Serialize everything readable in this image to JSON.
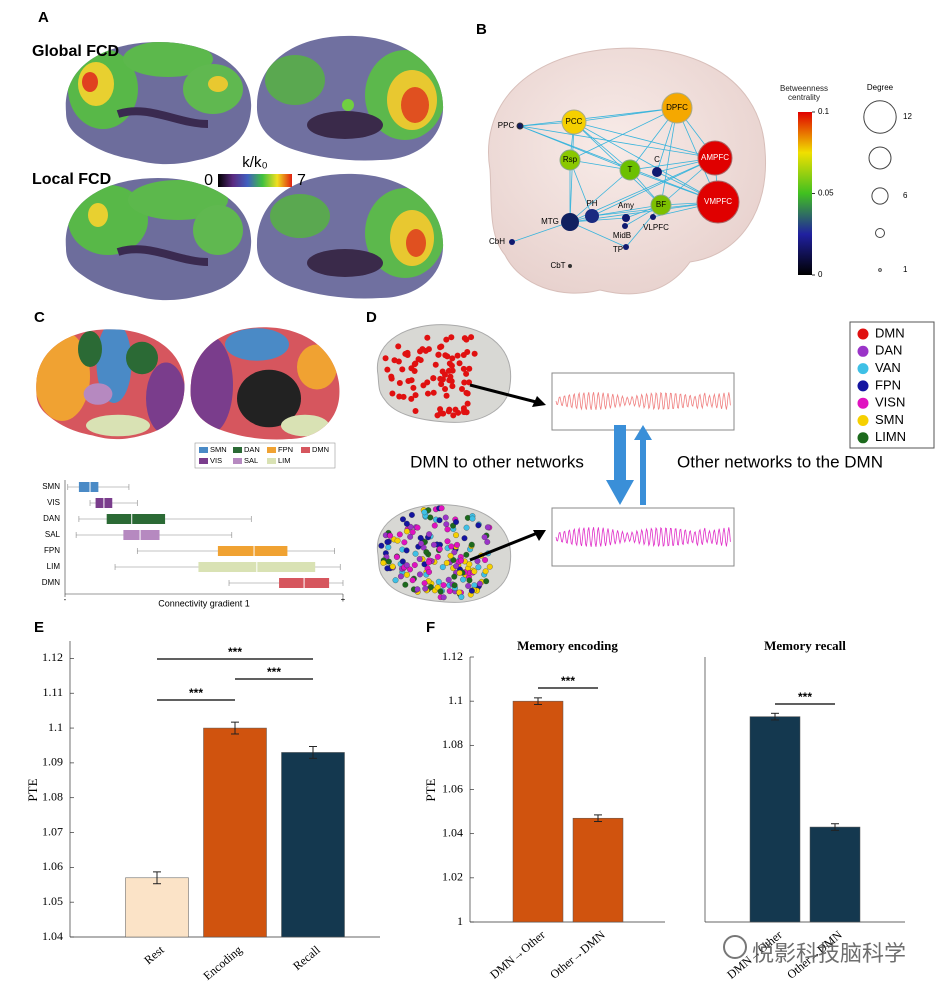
{
  "panel_letters": [
    "A",
    "B",
    "C",
    "D",
    "E",
    "F"
  ],
  "panel_a": {
    "global_label": "Global FCD",
    "local_label": "Local FCD",
    "colorbar": {
      "label": "k/k₀",
      "ticks": [
        0,
        7
      ]
    }
  },
  "panel_b": {
    "nodes": [
      "PPC",
      "PCC",
      "DPFC",
      "Rsp",
      "T",
      "C",
      "AMPFC",
      "PH",
      "Amy",
      "BF",
      "VMPFC",
      "MTG",
      "MidB",
      "VLPFC",
      "CbH",
      "TP",
      "CbT"
    ],
    "colorbar": {
      "title": "Betweenness centrality",
      "ticks": [
        0,
        0.05,
        0.1
      ]
    },
    "degree": {
      "title": "Degree",
      "ticks": [
        12,
        6,
        1
      ]
    }
  },
  "panel_c_legend": [
    {
      "name": "SMN",
      "color": "#4a8ac6"
    },
    {
      "name": "DAN",
      "color": "#2b6a35"
    },
    {
      "name": "FPN",
      "color": "#f0a232"
    },
    {
      "name": "DMN",
      "color": "#d6565e"
    },
    {
      "name": "VIS",
      "color": "#7a3d8c"
    },
    {
      "name": "SAL",
      "color": "#b689c0"
    },
    {
      "name": "LIM",
      "color": "#d9e2b4"
    }
  ],
  "panel_d": {
    "legend": [
      {
        "name": "DMN",
        "color": "#e01010"
      },
      {
        "name": "DAN",
        "color": "#9a34c8"
      },
      {
        "name": "VAN",
        "color": "#3ec0e6"
      },
      {
        "name": "FPN",
        "color": "#1414a0"
      },
      {
        "name": "VISN",
        "color": "#e012c0"
      },
      {
        "name": "SMN",
        "color": "#f6d000"
      },
      {
        "name": "LIMN",
        "color": "#1c6a1c"
      }
    ],
    "left_arrow_label": "DMN to other networks",
    "right_arrow_label": "Other networks to the DMN"
  },
  "chart_data": [
    {
      "type": "box",
      "categories": [
        "SMN",
        "VIS",
        "DAN",
        "SAL",
        "FPN",
        "LIM",
        "DMN"
      ],
      "boxes": [
        {
          "min": 0.01,
          "q1": 0.05,
          "median": 0.09,
          "q3": 0.12,
          "max": 0.23
        },
        {
          "min": 0.09,
          "q1": 0.11,
          "median": 0.14,
          "q3": 0.17,
          "max": 0.26
        },
        {
          "min": 0.05,
          "q1": 0.15,
          "median": 0.24,
          "q3": 0.36,
          "max": 0.67
        },
        {
          "min": 0.04,
          "q1": 0.21,
          "median": 0.27,
          "q3": 0.34,
          "max": 0.6
        },
        {
          "min": 0.26,
          "q1": 0.55,
          "median": 0.68,
          "q3": 0.8,
          "max": 0.97
        },
        {
          "min": 0.18,
          "q1": 0.48,
          "median": 0.69,
          "q3": 0.9,
          "max": 0.99
        },
        {
          "min": 0.59,
          "q1": 0.77,
          "median": 0.86,
          "q3": 0.95,
          "max": 1
        }
      ],
      "colors": [
        "#4a8ac6",
        "#7a3d8c",
        "#2b6a35",
        "#b689c0",
        "#f0a232",
        "#d9e2b4",
        "#d6565e"
      ],
      "xlabel": "Connectivity gradient 1",
      "xlim": [
        0,
        1
      ],
      "xticks": [
        {
          "value": 0,
          "label": "-"
        },
        {
          "value": 1,
          "label": "+"
        }
      ]
    },
    {
      "type": "bar",
      "ylabel": "PTE",
      "categories": [
        "Rest",
        "Encoding",
        "Recall"
      ],
      "values": [
        1.057,
        1.1,
        1.093
      ],
      "errors": [
        0.0017,
        0.0017,
        0.0017
      ],
      "colors": [
        "#fbe3c7",
        "#d0530e",
        "#14384f"
      ],
      "ylim": [
        1.04,
        1.125
      ],
      "yticks": [
        1.04,
        1.05,
        1.06,
        1.07,
        1.08,
        1.09,
        1.1,
        1.11,
        1.12
      ],
      "significance": [
        {
          "pair": [
            "Rest",
            "Recall"
          ],
          "label": "***"
        },
        {
          "pair": [
            "Encoding",
            "Recall"
          ],
          "label": "***"
        },
        {
          "pair": [
            "Rest",
            "Encoding"
          ],
          "label": "***"
        }
      ]
    },
    {
      "type": "bar",
      "title": "Memory encoding",
      "ylabel": "PTE",
      "categories": [
        "DMN→Other",
        "Other→DMN"
      ],
      "values": [
        1.1,
        1.047
      ],
      "errors": [
        0.0015,
        0.0015
      ],
      "colors": [
        "#d0530e",
        "#d0530e"
      ],
      "ylim": [
        1,
        1.12
      ],
      "yticks": [
        1,
        1.02,
        1.04,
        1.06,
        1.08,
        1.1,
        1.12
      ],
      "significance": [
        {
          "pair": [
            "DMN→Other",
            "Other→DMN"
          ],
          "label": "***"
        }
      ]
    },
    {
      "type": "bar",
      "title": "Memory recall",
      "categories": [
        "DMN→Other",
        "Other→DMN"
      ],
      "values": [
        1.093,
        1.043
      ],
      "errors": [
        0.0015,
        0.0015
      ],
      "colors": [
        "#14384f",
        "#14384f"
      ],
      "ylim": [
        1,
        1.12
      ],
      "significance": [
        {
          "pair": [
            "DMN→Other",
            "Other→DMN"
          ],
          "label": "***"
        }
      ]
    }
  ],
  "watermark": "悦影科技脑科学"
}
